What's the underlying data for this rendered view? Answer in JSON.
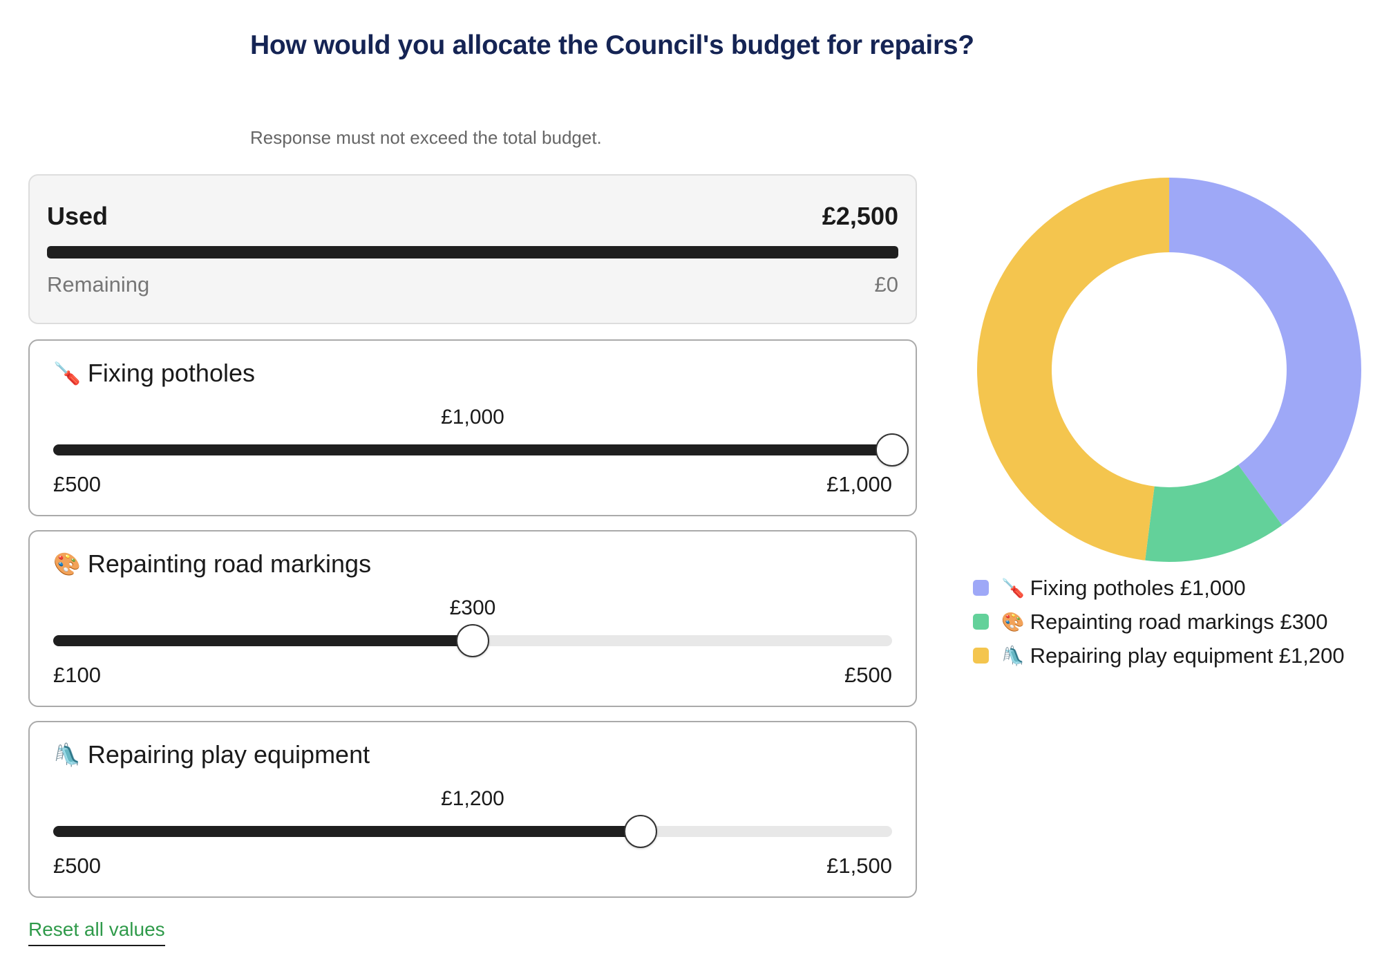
{
  "question": {
    "title": "How would you allocate the Council's budget for repairs?",
    "hint": "Response must not exceed the total budget."
  },
  "budget": {
    "used_label": "Used",
    "used_value": "£2,500",
    "used_fraction": 1.0,
    "remaining_label": "Remaining",
    "remaining_value": "£0"
  },
  "options": [
    {
      "emoji": "🪛",
      "icon": "shovel-icon",
      "label": "Fixing potholes",
      "value_text": "£1,000",
      "value": 1000,
      "min": 500,
      "max": 1000,
      "min_text": "£500",
      "max_text": "£1,000",
      "color": "#9ea8f7",
      "legend_text": "Fixing potholes £1,000"
    },
    {
      "emoji": "🎨",
      "icon": "palette-icon",
      "label": "Repainting road markings",
      "value_text": "£300",
      "value": 300,
      "min": 100,
      "max": 500,
      "min_text": "£100",
      "max_text": "£500",
      "color": "#63d19a",
      "legend_text": "Repainting road markings £300"
    },
    {
      "emoji": "🛝",
      "icon": "playground-slide-icon",
      "label": "Repairing play equipment",
      "value_text": "£1,200",
      "value": 1200,
      "min": 500,
      "max": 1500,
      "min_text": "£500",
      "max_text": "£1,500",
      "color": "#f4c54e",
      "legend_text": "Repairing play equipment £1,200"
    }
  ],
  "reset_label": "Reset all values",
  "chart_data": {
    "type": "pie",
    "categories": [
      "Fixing potholes",
      "Repainting road markings",
      "Repairing play equipment"
    ],
    "values": [
      1000,
      300,
      1200
    ],
    "colors": [
      "#9ea8f7",
      "#63d19a",
      "#f4c54e"
    ],
    "donut": true,
    "legend": "bottom"
  }
}
